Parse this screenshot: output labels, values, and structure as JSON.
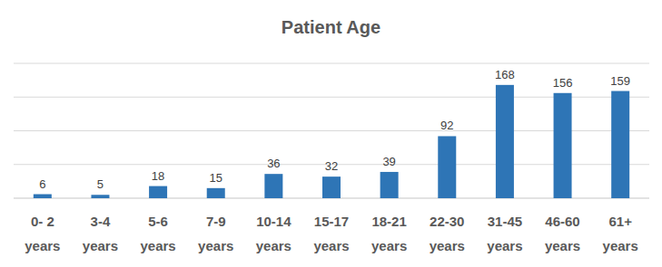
{
  "chart_data": {
    "type": "bar",
    "title": "Patient Age",
    "categories": [
      "0- 2 years",
      "3-4 years",
      "5-6 years",
      "7-9 years",
      "10-14 years",
      "15-17 years",
      "18-21 years",
      "22-30 years",
      "31-45 years",
      "46-60 years",
      "61+ years"
    ],
    "values": [
      6,
      5,
      18,
      15,
      36,
      32,
      39,
      92,
      168,
      156,
      159
    ],
    "color": "#2e75b6",
    "ylim": [
      0,
      200
    ],
    "yticks": [
      0,
      50,
      100,
      150,
      200
    ],
    "grid": true,
    "data_labels": true,
    "tick_labels": "x"
  }
}
